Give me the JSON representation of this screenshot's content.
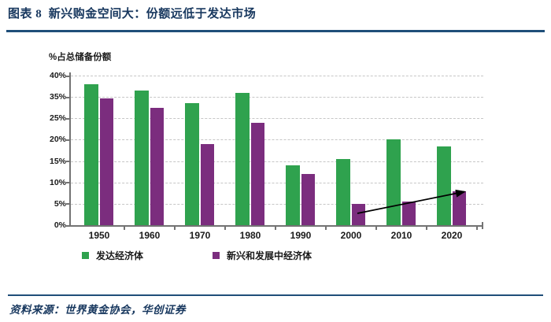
{
  "figure": {
    "title": "图表 8  新兴购金空间大：份额远低于发达市场",
    "source": "资料来源：世界黄金协会，华创证券"
  },
  "chart_data": {
    "type": "bar",
    "ylabel": "%占总储备份额",
    "categories": [
      "1950",
      "1960",
      "1970",
      "1980",
      "1990",
      "2000",
      "2010",
      "2020"
    ],
    "series": [
      {
        "name": "发达经济体",
        "color": "#2FA24E",
        "values": [
          38,
          36.5,
          32,
          36,
          14,
          15.5,
          20,
          18.5
        ]
      },
      {
        "name": "新兴和发展中经济体",
        "color": "#7B2D7E",
        "values": [
          34.5,
          30,
          19,
          24,
          12,
          5,
          5.5,
          8
        ]
      }
    ],
    "unit": "%",
    "y_tick_labels": [
      "40%",
      "35%",
      "25%",
      "20%",
      "15%",
      "10%",
      "5%",
      "0%"
    ],
    "y_axis_note": "tick labels equally spaced as displayed; 30% level not labeled",
    "grid": "horizontal-dashed",
    "legend_position": "bottom",
    "annotation": {
      "type": "arrow",
      "from": {
        "category": "2000",
        "series": "新兴和发展中经济体"
      },
      "to": {
        "category": "2020",
        "series": "新兴和发展中经济体"
      }
    }
  },
  "colors": {
    "title_navy": "#17375E",
    "rule_navy": "#1F4E79",
    "axis_gray": "#737373",
    "grid_gray": "#C6C6C6",
    "developed_green": "#2FA24E",
    "emerging_purple": "#7B2D7E"
  }
}
